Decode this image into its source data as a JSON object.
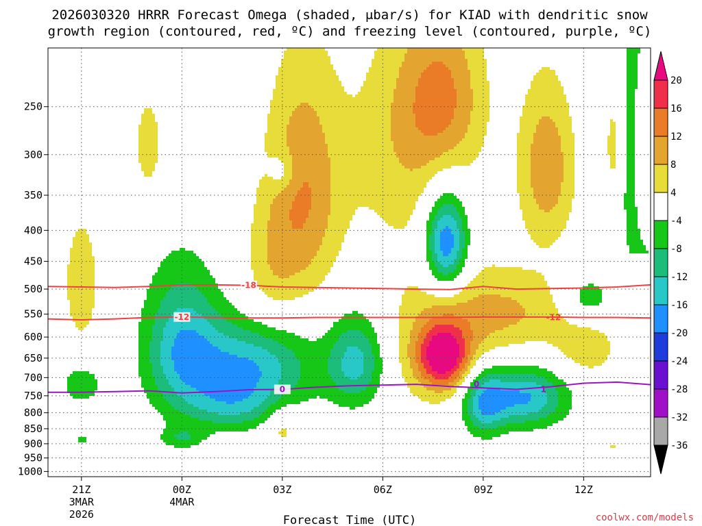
{
  "title_line1": "2026030320 HRRR Forecast Omega (shaded, μbar/s) for KIAD with dendritic snow",
  "title_line2": "growth region (contoured, red, ºC) and freezing level (contoured, purple, ºC)",
  "credit": "coolwx.com/models",
  "chart_data": {
    "type": "heatmap",
    "xlabel": "Forecast Time (UTC)",
    "ylabel": "",
    "x_range_hours": [
      -1,
      17
    ],
    "y_range_mb": [
      1020,
      200
    ],
    "y_scale": "log",
    "grid": true,
    "x_ticks": [
      {
        "hour": 0,
        "label": "21Z",
        "sub1": "3MAR",
        "sub2": "2026"
      },
      {
        "hour": 3,
        "label": "00Z",
        "sub1": "4MAR",
        "sub2": ""
      },
      {
        "hour": 6,
        "label": "03Z",
        "sub1": "",
        "sub2": ""
      },
      {
        "hour": 9,
        "label": "06Z",
        "sub1": "",
        "sub2": ""
      },
      {
        "hour": 12,
        "label": "09Z",
        "sub1": "",
        "sub2": ""
      },
      {
        "hour": 15,
        "label": "12Z",
        "sub1": "",
        "sub2": ""
      }
    ],
    "y_ticks": [
      "250",
      "300",
      "350",
      "400",
      "450",
      "500",
      "550",
      "600",
      "650",
      "700",
      "750",
      "800",
      "850",
      "900",
      "950",
      "1000"
    ],
    "colorbar": {
      "labels": [
        "20",
        "16",
        "12",
        "8",
        "4",
        "-4",
        "-8",
        "-12",
        "-16",
        "-20",
        "-24",
        "-28",
        "-32",
        "-36"
      ],
      "bands": [
        {
          "lo": 20,
          "hi": 99,
          "color": "#e8087f"
        },
        {
          "lo": 16,
          "hi": 20,
          "color": "#f0304a"
        },
        {
          "lo": 12,
          "hi": 16,
          "color": "#ea7c28"
        },
        {
          "lo": 8,
          "hi": 12,
          "color": "#e3a530"
        },
        {
          "lo": 4,
          "hi": 8,
          "color": "#e8dc3a"
        },
        {
          "lo": -4,
          "hi": 4,
          "color": "#ffffff"
        },
        {
          "lo": -8,
          "hi": -4,
          "color": "#17c717"
        },
        {
          "lo": -12,
          "hi": -8,
          "color": "#1cbd7a"
        },
        {
          "lo": -16,
          "hi": -12,
          "color": "#28c8c8"
        },
        {
          "lo": -20,
          "hi": -16,
          "color": "#1e90ff"
        },
        {
          "lo": -24,
          "hi": -20,
          "color": "#1e3cdc"
        },
        {
          "lo": -28,
          "hi": -24,
          "color": "#6a10d0"
        },
        {
          "lo": -32,
          "hi": -28,
          "color": "#a010c8"
        },
        {
          "lo": -36,
          "hi": -32,
          "color": "#a8a8a8"
        },
        {
          "lo": -99,
          "hi": -36,
          "color": "#000000"
        }
      ]
    },
    "omega_cells": [
      {
        "hour": 0.0,
        "pres": 490,
        "value": 8,
        "sx": 0.35,
        "sy": 80
      },
      {
        "hour": 0.0,
        "pres": 720,
        "value": -8,
        "sx": 0.4,
        "sy": 35
      },
      {
        "hour": 0.0,
        "pres": 885,
        "value": -6,
        "sx": 0.15,
        "sy": 12
      },
      {
        "hour": 2.0,
        "pres": 290,
        "value": 6,
        "sx": 0.35,
        "sy": 45
      },
      {
        "hour": 3.0,
        "pres": 880,
        "value": -7,
        "sx": 0.45,
        "sy": 25
      },
      {
        "hour": 3.0,
        "pres": 620,
        "value": -14,
        "sx": 0.8,
        "sy": 120
      },
      {
        "hour": 5.0,
        "pres": 675,
        "value": -16,
        "sx": 1.3,
        "sy": 80
      },
      {
        "hour": 4.5,
        "pres": 785,
        "value": -8,
        "sx": 0.9,
        "sy": 50
      },
      {
        "hour": 6.0,
        "pres": 320,
        "value": -6,
        "sx": 0.3,
        "sy": 18
      },
      {
        "hour": 6.6,
        "pres": 350,
        "value": 12,
        "sx": 0.8,
        "sy": 110
      },
      {
        "hour": 5.6,
        "pres": 470,
        "value": 5,
        "sx": 0.6,
        "sy": 80
      },
      {
        "hour": 6.0,
        "pres": 845,
        "value": 6,
        "sx": 0.35,
        "sy": 50
      },
      {
        "hour": 8.2,
        "pres": 660,
        "value": -14,
        "sx": 0.6,
        "sy": 80
      },
      {
        "hour": 9.5,
        "pres": 290,
        "value": 6,
        "sx": 1.2,
        "sy": 90
      },
      {
        "hour": 10.8,
        "pres": 240,
        "value": 11,
        "sx": 0.9,
        "sy": 55
      },
      {
        "hour": 10.9,
        "pres": 420,
        "value": -22,
        "sx": 0.45,
        "sy": 55
      },
      {
        "hour": 10.8,
        "pres": 645,
        "value": 20,
        "sx": 0.55,
        "sy": 55
      },
      {
        "hour": 10.8,
        "pres": 605,
        "value": 7,
        "sx": 1.3,
        "sy": 130
      },
      {
        "hour": 12.0,
        "pres": 770,
        "value": -14,
        "sx": 0.45,
        "sy": 70
      },
      {
        "hour": 13.2,
        "pres": 755,
        "value": -17,
        "sx": 0.9,
        "sy": 60
      },
      {
        "hour": 13.0,
        "pres": 545,
        "value": 7,
        "sx": 1.4,
        "sy": 60
      },
      {
        "hour": 13.9,
        "pres": 315,
        "value": 11,
        "sx": 0.6,
        "sy": 70
      },
      {
        "hour": 15.1,
        "pres": 630,
        "value": 6,
        "sx": 0.7,
        "sy": 55
      },
      {
        "hour": 15.1,
        "pres": 520,
        "value": -8,
        "sx": 0.55,
        "sy": 35
      },
      {
        "hour": 15.9,
        "pres": 290,
        "value": 7,
        "sx": 0.18,
        "sy": 40
      },
      {
        "hour": 17.0,
        "pres": 300,
        "value": -12,
        "sx": 0.55,
        "sy": 150
      },
      {
        "hour": 17.0,
        "pres": 850,
        "value": -8,
        "sx": 0.3,
        "sy": 110
      },
      {
        "hour": 15.9,
        "pres": 910,
        "value": 5,
        "sx": 0.12,
        "sy": 10
      }
    ],
    "series": [
      {
        "name": "-18",
        "role": "dendritic-growth-upper",
        "color": "#ee4040",
        "hours": [
          -1,
          0,
          1,
          2,
          3,
          4,
          5,
          6,
          7,
          8,
          9,
          10,
          11,
          12,
          13,
          14,
          15,
          16,
          17
        ],
        "values": [
          495,
          496,
          497,
          495,
          492,
          492,
          493,
          496,
          497,
          498,
          499,
          500,
          501,
          495,
          500,
          499,
          498,
          496,
          492
        ],
        "label_hour": 5
      },
      {
        "name": "-12",
        "role": "dendritic-growth-lower",
        "color": "#ee4040",
        "hours": [
          -1,
          0,
          1,
          2,
          3,
          4,
          5,
          6,
          7,
          8,
          9,
          10,
          11,
          12,
          13,
          14,
          15,
          16,
          17
        ],
        "values": [
          560,
          562,
          560,
          557,
          556,
          557,
          558,
          558,
          557,
          557,
          557,
          557,
          557,
          556,
          556,
          556,
          557,
          557,
          558
        ],
        "label_hour": 3
      },
      {
        "name": "0",
        "role": "freezing-level",
        "color": "#9a14c4",
        "hours": [
          -1,
          0,
          1,
          2,
          3,
          4,
          5,
          6,
          7,
          8,
          9,
          10,
          11,
          12,
          13,
          14,
          15,
          16,
          17
        ],
        "values": [
          740,
          740,
          738,
          736,
          742,
          738,
          733,
          732,
          726,
          722,
          720,
          718,
          724,
          728,
          732,
          725,
          715,
          712,
          719
        ],
        "label_hour": 6
      }
    ],
    "extra_labels": [
      {
        "text": "-12",
        "hour": 14.1,
        "pres": 557,
        "color": "#ee4040"
      },
      {
        "text": "0",
        "hour": 11.8,
        "pres": 718,
        "color": "#9a14c4"
      },
      {
        "text": "1",
        "hour": 13.8,
        "pres": 732,
        "color": "#9a14c4"
      }
    ],
    "surface_color": "#a0522d"
  }
}
